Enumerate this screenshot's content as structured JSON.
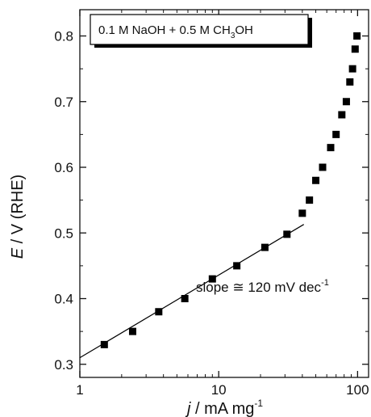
{
  "chart_data": {
    "type": "scatter",
    "x_scale": "log",
    "xlim": [
      1,
      120
    ],
    "ylim": [
      0.28,
      0.84
    ],
    "xlabel": {
      "italic": "j",
      "rest": " / mA mg",
      "sup": "-1"
    },
    "ylabel": {
      "italic": "E",
      "rest": " / V (RHE)"
    },
    "x_ticks": [
      {
        "value": 1,
        "label": "1"
      },
      {
        "value": 10,
        "label": "10"
      },
      {
        "value": 100,
        "label": "100"
      }
    ],
    "y_ticks": [
      {
        "value": 0.3,
        "label": "0.3"
      },
      {
        "value": 0.4,
        "label": "0.4"
      },
      {
        "value": 0.5,
        "label": "0.5"
      },
      {
        "value": 0.6,
        "label": "0.6"
      },
      {
        "value": 0.7,
        "label": "0.7"
      },
      {
        "value": 0.8,
        "label": "0.8"
      }
    ],
    "series": [
      {
        "marker": "square",
        "color": "#000000",
        "x": [
          1.5,
          2.4,
          3.7,
          5.7,
          9.0,
          13.5,
          21.5,
          31.0,
          40.0,
          45.0,
          50.0,
          56.0,
          64.0,
          70.0,
          77.0,
          83.0,
          88.0,
          92.0,
          96.0,
          99.0
        ],
        "y": [
          0.33,
          0.35,
          0.38,
          0.4,
          0.43,
          0.45,
          0.478,
          0.498,
          0.53,
          0.55,
          0.58,
          0.6,
          0.63,
          0.65,
          0.68,
          0.7,
          0.73,
          0.75,
          0.78,
          0.8
        ]
      }
    ],
    "fit_line": {
      "x": [
        1.0,
        41.0
      ],
      "y": [
        0.31,
        0.513
      ],
      "color": "#000000"
    },
    "annotation": {
      "text": "slope ≅ 120 mV dec",
      "sup": "-1"
    },
    "legend_box": {
      "parts": [
        "0.1 M NaOH + 0.5 M CH",
        "3",
        "OH"
      ]
    },
    "grid": false
  }
}
